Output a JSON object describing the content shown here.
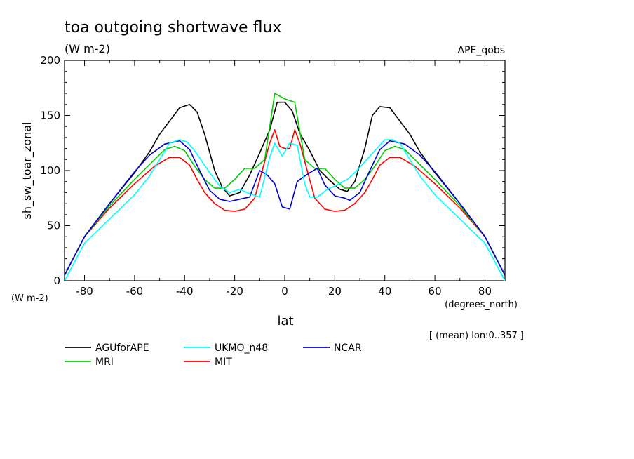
{
  "chart_data": {
    "type": "line",
    "title": "toa outgoing shortwave flux",
    "units": "(W m-2)",
    "dataset": "APE_qobs",
    "ylabel": "sh_sw_toar_zonal",
    "y_units_label": "(W m-2)",
    "xlabel": "lat",
    "x_units_label": "(degrees_north)",
    "footnote": "[ (mean) lon:0..357 ]",
    "xlim": [
      -88,
      88
    ],
    "ylim": [
      0,
      200
    ],
    "xticks": [
      -80,
      -60,
      -40,
      -20,
      0,
      20,
      40,
      60,
      80
    ],
    "yticks": [
      0,
      50,
      100,
      150,
      200
    ],
    "grid": false,
    "legend_position": "bottom",
    "series": [
      {
        "name": "AGUforAPE",
        "color": "#000000",
        "x": [
          -88,
          -80,
          -70,
          -60,
          -54,
          -50,
          -46,
          -42,
          -38,
          -35,
          -32,
          -28,
          -25,
          -22,
          -18,
          -14,
          -10,
          -6,
          -3,
          0,
          3,
          6,
          10,
          14,
          18,
          22,
          25,
          28,
          32,
          35,
          38,
          42,
          46,
          50,
          54,
          60,
          70,
          80,
          88
        ],
        "y": [
          5,
          40,
          70,
          98,
          117,
          133,
          145,
          157,
          160,
          153,
          133,
          100,
          85,
          77,
          80,
          96,
          116,
          137,
          162,
          162,
          154,
          134,
          118,
          100,
          91,
          83,
          81,
          90,
          120,
          150,
          158,
          157,
          145,
          133,
          117,
          98,
          70,
          40,
          5
        ]
      },
      {
        "name": "MIT",
        "color": "#ff0000",
        "x": [
          -88,
          -80,
          -70,
          -60,
          -52,
          -46,
          -42,
          -38,
          -35,
          -32,
          -28,
          -24,
          -20,
          -16,
          -12,
          -9,
          -6,
          -4,
          -2,
          0,
          2,
          4,
          6,
          9,
          12,
          16,
          20,
          24,
          28,
          32,
          35,
          38,
          42,
          46,
          52,
          60,
          70,
          80,
          88
        ],
        "y": [
          5,
          40,
          66,
          88,
          104,
          112,
          112,
          105,
          92,
          80,
          70,
          64,
          63,
          65,
          75,
          100,
          125,
          137,
          122,
          120,
          120,
          137,
          125,
          100,
          75,
          65,
          63,
          64,
          70,
          80,
          92,
          105,
          112,
          112,
          104,
          88,
          66,
          40,
          5
        ]
      },
      {
        "name": "MRI",
        "color": "#00cc00",
        "x": [
          -88,
          -80,
          -70,
          -60,
          -52,
          -48,
          -44,
          -40,
          -36,
          -32,
          -28,
          -24,
          -20,
          -16,
          -12,
          -8,
          -4,
          0,
          4,
          8,
          12,
          16,
          20,
          24,
          28,
          32,
          36,
          40,
          44,
          48,
          52,
          60,
          70,
          80,
          88
        ],
        "y": [
          5,
          40,
          68,
          92,
          110,
          119,
          122,
          118,
          104,
          92,
          84,
          84,
          92,
          102,
          102,
          110,
          170,
          165,
          162,
          110,
          102,
          102,
          92,
          84,
          84,
          92,
          104,
          118,
          122,
          119,
          110,
          92,
          68,
          40,
          5
        ]
      },
      {
        "name": "NCAR",
        "color": "#0000cc",
        "x": [
          -88,
          -80,
          -70,
          -60,
          -54,
          -48,
          -42,
          -38,
          -34,
          -30,
          -26,
          -22,
          -18,
          -14,
          -10,
          -7,
          -4,
          -1,
          2,
          5,
          8,
          10,
          13,
          16,
          20,
          24,
          26,
          30,
          34,
          38,
          42,
          48,
          54,
          60,
          70,
          80,
          88
        ],
        "y": [
          5,
          40,
          70,
          99,
          114,
          124,
          127,
          119,
          100,
          82,
          74,
          72,
          74,
          76,
          100,
          96,
          88,
          67,
          65,
          90,
          95,
          98,
          102,
          87,
          77,
          75,
          73,
          80,
          100,
          119,
          127,
          124,
          114,
          99,
          70,
          40,
          5
        ]
      },
      {
        "name": "UKMO_n48",
        "color": "#00ffff",
        "x": [
          -88,
          -80,
          -70,
          -60,
          -54,
          -50,
          -46,
          -42,
          -39,
          -36,
          -33,
          -30,
          -26,
          -22,
          -18,
          -14,
          -10,
          -6,
          -4,
          -1,
          2,
          5,
          8,
          10,
          13,
          17,
          20,
          25,
          28,
          32,
          36,
          40,
          43,
          46,
          50,
          54,
          60,
          70,
          80,
          88
        ],
        "y": [
          0,
          34,
          56,
          78,
          95,
          110,
          125,
          128,
          126,
          118,
          108,
          98,
          86,
          80,
          83,
          79,
          76,
          112,
          125,
          113,
          125,
          123,
          88,
          76,
          76,
          83,
          86,
          92,
          98,
          108,
          118,
          128,
          128,
          125,
          110,
          95,
          78,
          56,
          34,
          0
        ]
      }
    ]
  }
}
